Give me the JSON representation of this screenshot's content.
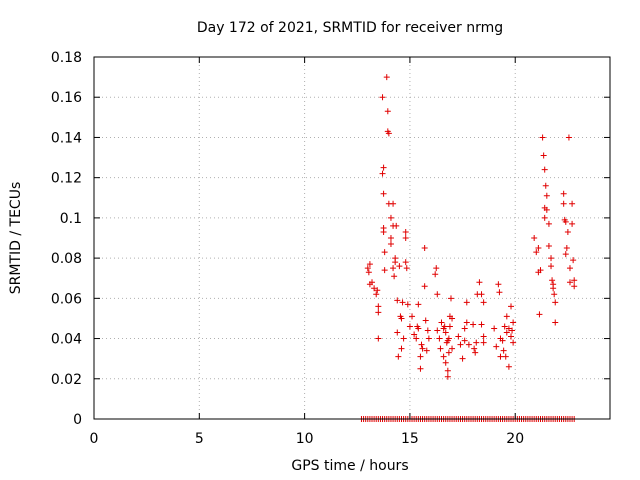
{
  "chart_data": {
    "type": "scatter",
    "title": "Day 172 of 2021, SRMTID for receiver nrmg",
    "xlabel": "GPS time / hours",
    "ylabel": "SRMTID / TECUs",
    "xlim": [
      0,
      24.5
    ],
    "ylim": [
      0,
      0.18
    ],
    "xticks": [
      0,
      5,
      10,
      15,
      20
    ],
    "xtick_labels": [
      "0",
      "5",
      "10",
      "15",
      "20"
    ],
    "yticks": [
      0,
      0.02,
      0.04,
      0.06,
      0.08,
      0.1,
      0.12,
      0.14,
      0.16,
      0.18
    ],
    "ytick_labels": [
      "0",
      "0.02",
      "0.04",
      "0.06",
      "0.08",
      "0.1",
      "0.12",
      "0.14",
      "0.16",
      "0.18"
    ],
    "grid": true,
    "marker": "+",
    "color": "#e00000",
    "series": [
      {
        "name": "SRMTID",
        "points": [
          [
            13.0,
            0.075
          ],
          [
            13.05,
            0.073
          ],
          [
            13.1,
            0.077
          ],
          [
            13.1,
            0.067
          ],
          [
            13.2,
            0.068
          ],
          [
            13.3,
            0.065
          ],
          [
            13.4,
            0.062
          ],
          [
            13.45,
            0.064
          ],
          [
            13.5,
            0.056
          ],
          [
            13.5,
            0.053
          ],
          [
            13.5,
            0.04
          ],
          [
            13.7,
            0.122
          ],
          [
            13.75,
            0.125
          ],
          [
            13.75,
            0.112
          ],
          [
            13.75,
            0.095
          ],
          [
            13.75,
            0.093
          ],
          [
            13.7,
            0.16
          ],
          [
            13.8,
            0.083
          ],
          [
            13.8,
            0.074
          ],
          [
            13.9,
            0.17
          ],
          [
            13.95,
            0.153
          ],
          [
            13.95,
            0.143
          ],
          [
            14.0,
            0.142
          ],
          [
            14.0,
            0.107
          ],
          [
            14.1,
            0.1
          ],
          [
            14.1,
            0.087
          ],
          [
            14.1,
            0.09
          ],
          [
            14.2,
            0.107
          ],
          [
            14.2,
            0.096
          ],
          [
            14.2,
            0.075
          ],
          [
            14.25,
            0.071
          ],
          [
            14.3,
            0.08
          ],
          [
            14.3,
            0.078
          ],
          [
            14.35,
            0.096
          ],
          [
            14.4,
            0.059
          ],
          [
            14.4,
            0.043
          ],
          [
            14.45,
            0.031
          ],
          [
            14.5,
            0.076
          ],
          [
            14.55,
            0.051
          ],
          [
            14.6,
            0.05
          ],
          [
            14.6,
            0.035
          ],
          [
            14.65,
            0.058
          ],
          [
            14.7,
            0.04
          ],
          [
            14.8,
            0.09
          ],
          [
            14.8,
            0.093
          ],
          [
            14.8,
            0.078
          ],
          [
            14.85,
            0.075
          ],
          [
            14.9,
            0.057
          ],
          [
            15.0,
            0.046
          ],
          [
            15.1,
            0.051
          ],
          [
            15.2,
            0.042
          ],
          [
            15.3,
            0.04
          ],
          [
            15.35,
            0.046
          ],
          [
            15.4,
            0.057
          ],
          [
            15.4,
            0.045
          ],
          [
            15.5,
            0.031
          ],
          [
            15.5,
            0.025
          ],
          [
            15.55,
            0.037
          ],
          [
            15.6,
            0.035
          ],
          [
            15.7,
            0.085
          ],
          [
            15.7,
            0.066
          ],
          [
            15.75,
            0.049
          ],
          [
            15.8,
            0.034
          ],
          [
            15.85,
            0.044
          ],
          [
            15.9,
            0.04
          ],
          [
            16.2,
            0.072
          ],
          [
            16.25,
            0.075
          ],
          [
            16.3,
            0.062
          ],
          [
            16.3,
            0.044
          ],
          [
            16.4,
            0.04
          ],
          [
            16.45,
            0.035
          ],
          [
            16.5,
            0.048
          ],
          [
            16.6,
            0.045
          ],
          [
            16.6,
            0.031
          ],
          [
            16.65,
            0.046
          ],
          [
            16.7,
            0.043
          ],
          [
            16.7,
            0.028
          ],
          [
            16.75,
            0.038
          ],
          [
            16.8,
            0.039
          ],
          [
            16.8,
            0.024
          ],
          [
            16.8,
            0.021
          ],
          [
            16.85,
            0.033
          ],
          [
            16.85,
            0.04
          ],
          [
            16.9,
            0.046
          ],
          [
            16.9,
            0.051
          ],
          [
            16.95,
            0.06
          ],
          [
            17.0,
            0.05
          ],
          [
            17.0,
            0.035
          ],
          [
            17.3,
            0.041
          ],
          [
            17.4,
            0.037
          ],
          [
            17.5,
            0.03
          ],
          [
            17.6,
            0.045
          ],
          [
            17.6,
            0.039
          ],
          [
            17.7,
            0.048
          ],
          [
            17.7,
            0.058
          ],
          [
            17.8,
            0.037
          ],
          [
            18.0,
            0.047
          ],
          [
            18.05,
            0.035
          ],
          [
            18.1,
            0.033
          ],
          [
            18.15,
            0.038
          ],
          [
            18.2,
            0.062
          ],
          [
            18.3,
            0.068
          ],
          [
            18.4,
            0.062
          ],
          [
            18.4,
            0.047
          ],
          [
            18.5,
            0.041
          ],
          [
            18.5,
            0.038
          ],
          [
            18.5,
            0.058
          ],
          [
            19.0,
            0.045
          ],
          [
            19.1,
            0.036
          ],
          [
            19.2,
            0.067
          ],
          [
            19.25,
            0.063
          ],
          [
            19.3,
            0.04
          ],
          [
            19.3,
            0.031
          ],
          [
            19.4,
            0.039
          ],
          [
            19.45,
            0.034
          ],
          [
            19.5,
            0.046
          ],
          [
            19.55,
            0.031
          ],
          [
            19.6,
            0.051
          ],
          [
            19.6,
            0.043
          ],
          [
            19.7,
            0.026
          ],
          [
            19.7,
            0.045
          ],
          [
            19.8,
            0.041
          ],
          [
            19.8,
            0.056
          ],
          [
            19.85,
            0.044
          ],
          [
            19.9,
            0.048
          ],
          [
            19.9,
            0.038
          ],
          [
            20.9,
            0.09
          ],
          [
            21.0,
            0.083
          ],
          [
            21.1,
            0.085
          ],
          [
            21.1,
            0.073
          ],
          [
            21.15,
            0.052
          ],
          [
            21.2,
            0.074
          ],
          [
            21.3,
            0.14
          ],
          [
            21.35,
            0.131
          ],
          [
            21.4,
            0.124
          ],
          [
            21.4,
            0.105
          ],
          [
            21.4,
            0.1
          ],
          [
            21.45,
            0.116
          ],
          [
            21.5,
            0.111
          ],
          [
            21.5,
            0.104
          ],
          [
            21.6,
            0.097
          ],
          [
            21.6,
            0.086
          ],
          [
            21.7,
            0.08
          ],
          [
            21.7,
            0.076
          ],
          [
            21.75,
            0.069
          ],
          [
            21.8,
            0.067
          ],
          [
            21.8,
            0.065
          ],
          [
            21.85,
            0.062
          ],
          [
            21.9,
            0.058
          ],
          [
            21.9,
            0.048
          ],
          [
            22.3,
            0.112
          ],
          [
            22.3,
            0.107
          ],
          [
            22.35,
            0.099
          ],
          [
            22.4,
            0.098
          ],
          [
            22.4,
            0.082
          ],
          [
            22.45,
            0.085
          ],
          [
            22.5,
            0.093
          ],
          [
            22.55,
            0.14
          ],
          [
            22.6,
            0.075
          ],
          [
            22.6,
            0.068
          ],
          [
            22.7,
            0.107
          ],
          [
            22.7,
            0.097
          ],
          [
            22.75,
            0.079
          ],
          [
            22.8,
            0.069
          ],
          [
            22.8,
            0.066
          ]
        ]
      }
    ],
    "zero_points_x": [
      12.7,
      12.8,
      12.9,
      13.0,
      13.1,
      13.2,
      13.3,
      13.4,
      13.5,
      13.6,
      13.7,
      13.8,
      13.9,
      14.0,
      14.1,
      14.2,
      14.3,
      14.4,
      14.5,
      14.6,
      14.7,
      14.8,
      14.9,
      15.0,
      15.1,
      15.2,
      15.3,
      15.4,
      15.5,
      15.6,
      15.7,
      15.8,
      15.9,
      16.0,
      16.1,
      16.2,
      16.3,
      16.4,
      16.5,
      16.6,
      16.7,
      16.8,
      16.9,
      17.0,
      17.1,
      17.2,
      17.3,
      17.4,
      17.5,
      17.6,
      17.7,
      17.8,
      17.9,
      18.0,
      18.1,
      18.2,
      18.3,
      18.4,
      18.5,
      18.6,
      18.7,
      18.8,
      18.9,
      19.0,
      19.1,
      19.2,
      19.3,
      19.4,
      19.5,
      19.6,
      19.7,
      19.8,
      19.9,
      20.0,
      20.1,
      20.2,
      20.3,
      20.4,
      20.5,
      20.6,
      20.7,
      20.8,
      20.9,
      21.0,
      21.1,
      21.2,
      21.3,
      21.4,
      21.5,
      21.6,
      21.7,
      21.8,
      21.9,
      22.0,
      22.1,
      22.2,
      22.3,
      22.4,
      22.5,
      22.6,
      22.7,
      22.8
    ]
  }
}
